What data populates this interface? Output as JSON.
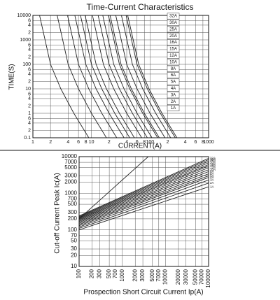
{
  "chart_data": [
    {
      "type": "line",
      "title": "Time-Current Characteristics",
      "x_label": "CURRENT(A)",
      "y_label": "TIME(S)",
      "xscale": "log",
      "yscale": "log",
      "grid": true,
      "color": "#222",
      "xlim": [
        1,
        1000
      ],
      "ylim": [
        0.1,
        10000
      ],
      "xticks": [
        1,
        2,
        4,
        6,
        8,
        10,
        {
          "value": 20,
          "label": "2"
        },
        {
          "value": 40,
          "label": "4"
        },
        {
          "value": 60,
          "label": "6"
        },
        {
          "value": 80,
          "label": "8"
        },
        100,
        {
          "value": 200,
          "label": "2"
        },
        {
          "value": 400,
          "label": "4"
        },
        {
          "value": 600,
          "label": "6"
        },
        {
          "value": 800,
          "label": "8"
        },
        1000
      ],
      "yticks": [
        0.1,
        {
          "value": 0.2,
          "label": "2"
        },
        {
          "value": 0.4,
          "label": "4"
        },
        {
          "value": 0.6,
          "label": "6"
        },
        1,
        {
          "value": 2,
          "label": "2"
        },
        {
          "value": 4,
          "label": "4"
        },
        {
          "value": 6,
          "label": "6"
        },
        10,
        {
          "value": 20,
          "label": "2"
        },
        {
          "value": 40,
          "label": "4"
        },
        {
          "value": 60,
          "label": "6"
        },
        100,
        {
          "value": 200,
          "label": "2"
        },
        {
          "value": 400,
          "label": "4"
        },
        {
          "value": 600,
          "label": "6"
        },
        1000,
        {
          "value": 2000,
          "label": "2"
        },
        {
          "value": 4000,
          "label": "4"
        },
        {
          "value": 6000,
          "label": "6"
        },
        10000
      ],
      "series": [
        {
          "name": "1A",
          "x": [
            1.3,
            2,
            3,
            5,
            9
          ],
          "values": [
            10000,
            100,
            10,
            1,
            0.1
          ]
        },
        {
          "name": "2A",
          "x": [
            2.6,
            4,
            6,
            10,
            18
          ],
          "values": [
            10000,
            100,
            10,
            1,
            0.1
          ]
        },
        {
          "name": "3A",
          "x": [
            3.9,
            6,
            9,
            15,
            27
          ],
          "values": [
            10000,
            100,
            10,
            1,
            0.1
          ]
        },
        {
          "name": "4A",
          "x": [
            5.2,
            8,
            12,
            20,
            36
          ],
          "values": [
            10000,
            100,
            10,
            1,
            0.1
          ]
        },
        {
          "name": "5A",
          "x": [
            6.5,
            10,
            15,
            25,
            45
          ],
          "values": [
            10000,
            100,
            10,
            1,
            0.1
          ]
        },
        {
          "name": "6A",
          "x": [
            7.8,
            12,
            18,
            30,
            54
          ],
          "values": [
            10000,
            100,
            10,
            1,
            0.1
          ]
        },
        {
          "name": "8A",
          "x": [
            10.4,
            16,
            24,
            40,
            72
          ],
          "values": [
            10000,
            100,
            10,
            1,
            0.1
          ]
        },
        {
          "name": "10A",
          "x": [
            13,
            20,
            30,
            50,
            90
          ],
          "values": [
            10000,
            100,
            10,
            1,
            0.1
          ]
        },
        {
          "name": "12A",
          "x": [
            15.6,
            24,
            36,
            60,
            108
          ],
          "values": [
            10000,
            100,
            10,
            1,
            0.1
          ]
        },
        {
          "name": "15A",
          "x": [
            19.5,
            30,
            45,
            75,
            135
          ],
          "values": [
            10000,
            100,
            10,
            1,
            0.1
          ]
        },
        {
          "name": "16A",
          "x": [
            20.8,
            32,
            48,
            80,
            144
          ],
          "values": [
            10000,
            100,
            10,
            1,
            0.1
          ]
        },
        {
          "name": "20A",
          "x": [
            26,
            40,
            60,
            100,
            180
          ],
          "values": [
            10000,
            100,
            10,
            1,
            0.1
          ]
        },
        {
          "name": "25A",
          "x": [
            32.5,
            50,
            75,
            125,
            225
          ],
          "values": [
            10000,
            100,
            10,
            1,
            0.1
          ]
        },
        {
          "name": "30A",
          "x": [
            39,
            60,
            90,
            150,
            270
          ],
          "values": [
            10000,
            100,
            10,
            1,
            0.1
          ]
        },
        {
          "name": "32A",
          "x": [
            41.6,
            64,
            96,
            160,
            288
          ],
          "values": [
            10000,
            100,
            10,
            1,
            0.1
          ]
        }
      ]
    },
    {
      "type": "line",
      "x_label": "Prospection Short Circuit Current Ip(A)",
      "y_label": "Cut-off Current Peak Ic(A)",
      "xscale": "log",
      "yscale": "log",
      "grid": true,
      "color": "#222",
      "xlim": [
        100,
        100000
      ],
      "ylim": [
        10,
        10000
      ],
      "xticks": [
        100,
        200,
        300,
        500,
        700,
        1000,
        2000,
        3000,
        5000,
        7000,
        10000,
        20000,
        30000,
        50000,
        70000,
        100000
      ],
      "yticks": [
        10,
        20,
        30,
        50,
        70,
        100,
        200,
        300,
        500,
        700,
        1000,
        2000,
        3000,
        5000,
        7000,
        10000
      ],
      "series": [
        {
          "x": [
            100,
            4000
          ],
          "values": [
            200,
            10000
          ]
        },
        {
          "name": "1A",
          "x": [
            100,
            100000
          ],
          "values": [
            100,
            1500
          ]
        },
        {
          "name": "2A",
          "x": [
            100,
            100000
          ],
          "values": [
            110,
            1900
          ]
        },
        {
          "name": "3A",
          "x": [
            100,
            100000
          ],
          "values": [
            120,
            2300
          ]
        },
        {
          "name": "4A",
          "x": [
            100,
            100000
          ],
          "values": [
            130,
            2700
          ]
        },
        {
          "name": "5A",
          "x": [
            100,
            100000
          ],
          "values": [
            140,
            3000
          ]
        },
        {
          "name": "6A",
          "x": [
            100,
            100000
          ],
          "values": [
            150,
            3400
          ]
        },
        {
          "name": "8A",
          "x": [
            100,
            100000
          ],
          "values": [
            160,
            3900
          ]
        },
        {
          "name": "10A",
          "x": [
            100,
            100000
          ],
          "values": [
            170,
            4400
          ]
        },
        {
          "name": "12A",
          "x": [
            100,
            100000
          ],
          "values": [
            180,
            5000
          ]
        },
        {
          "name": "15A",
          "x": [
            100,
            100000
          ],
          "values": [
            190,
            5600
          ]
        },
        {
          "name": "16A",
          "x": [
            100,
            100000
          ],
          "values": [
            200,
            6100
          ]
        },
        {
          "name": "20A",
          "x": [
            100,
            100000
          ],
          "values": [
            210,
            6800
          ]
        },
        {
          "name": "25A",
          "x": [
            100,
            100000
          ],
          "values": [
            220,
            7500
          ]
        },
        {
          "name": "30A",
          "x": [
            100,
            100000
          ],
          "values": [
            230,
            8300
          ]
        },
        {
          "name": "32A",
          "x": [
            100,
            100000
          ],
          "values": [
            240,
            9000
          ]
        }
      ]
    }
  ]
}
